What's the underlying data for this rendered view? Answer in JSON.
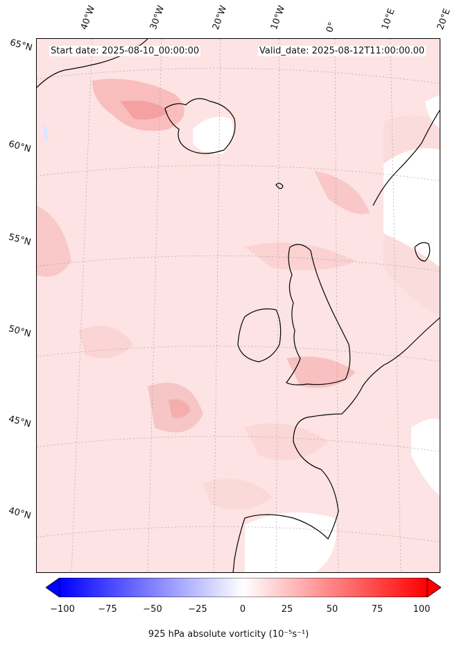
{
  "header": {
    "start_date": "Start date: 2025-08-10_00:00:00",
    "valid_date": "Valid_date: 2025-08-12T11:00:00.00"
  },
  "map": {
    "longitude_labels": [
      "40°W",
      "30°W",
      "20°W",
      "10°W",
      "0°",
      "10°E",
      "20°E"
    ],
    "latitude_labels": [
      "65°N",
      "60°N",
      "55°N",
      "50°N",
      "45°N",
      "40°N"
    ],
    "field": "925 hPa absolute vorticity",
    "colormap": "bwr",
    "colors": {
      "negative": "#0000ff",
      "zero": "#ffffff",
      "positive": "#ff0000",
      "coastline": "#000000"
    }
  },
  "colorbar": {
    "ticks": [
      "−100",
      "−75",
      "−50",
      "−25",
      "0",
      "25",
      "50",
      "75",
      "100"
    ],
    "range": [
      -100,
      100
    ],
    "extend": "both",
    "label": "925 hPa absolute vorticity (10⁻⁵s⁻¹)"
  }
}
